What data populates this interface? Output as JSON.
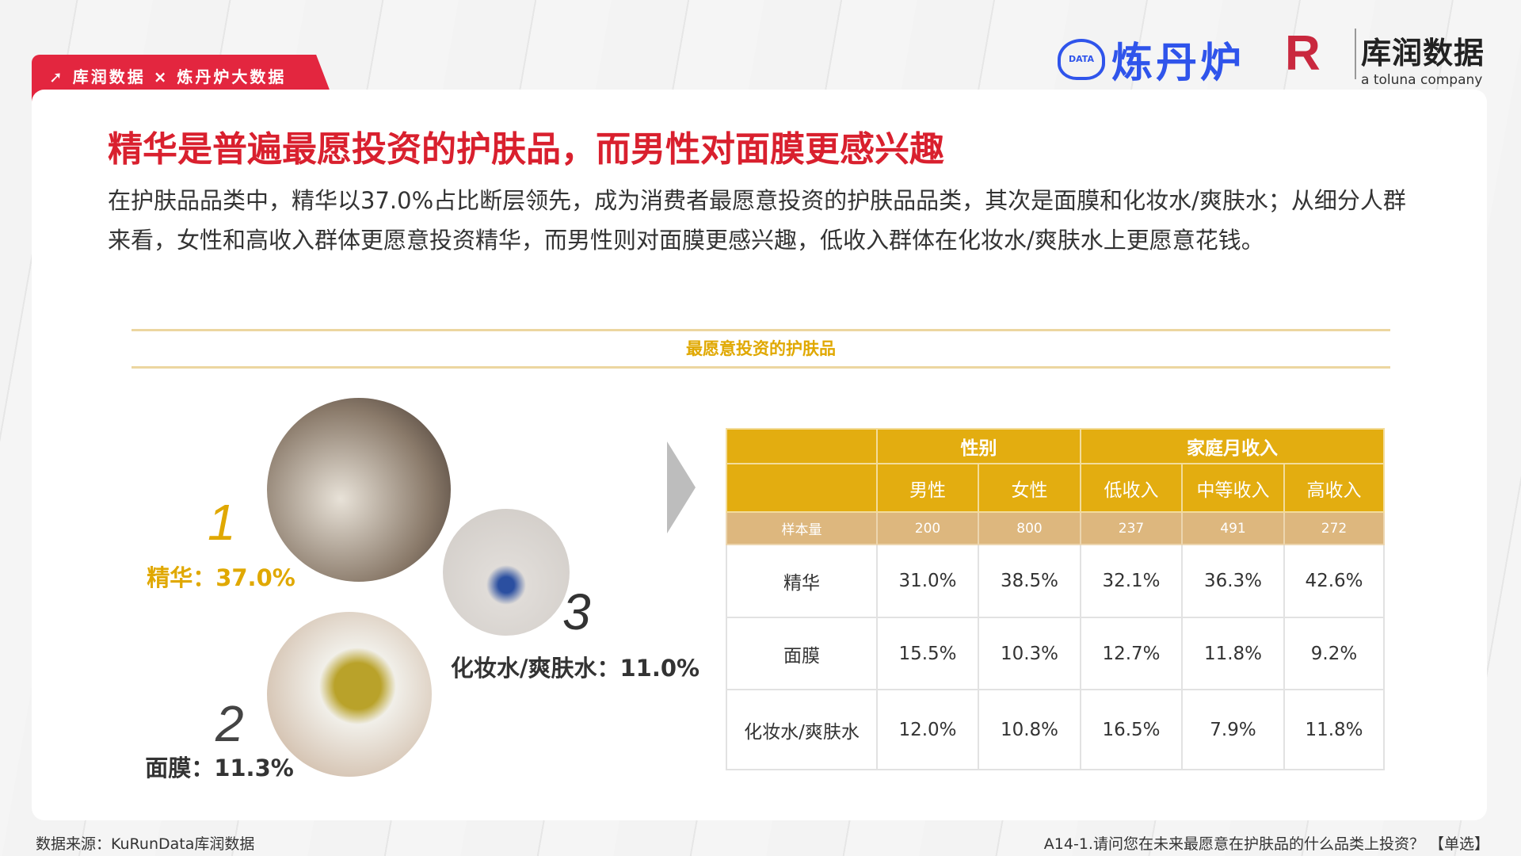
{
  "header": {
    "tab_label": "库润数据 × 炼丹炉大数据",
    "logo_left": "炼丹炉",
    "logo_left_badge": "DATA",
    "logo_right": "库润数据",
    "logo_right_sub": "a toluna company"
  },
  "title": "精华是普遍最愿投资的护肤品，而男性对面膜更感兴趣",
  "paragraph": "在护肤品品类中，精华以37.0%占比断层领先，成为消费者最愿意投资的护肤品品类，其次是面膜和化妆水/爽肤水；从细分人群来看，女性和高收入群体更愿意投资精华，而男性则对面膜更感兴趣，低收入群体在化妆水/爽肤水上更愿意花钱。",
  "section_title": "最愿意投资的护肤品",
  "ranking": [
    {
      "rank": "1",
      "label": "精华：37.0%",
      "value": 37.0
    },
    {
      "rank": "2",
      "label": "面膜：11.3%",
      "value": 11.3
    },
    {
      "rank": "3",
      "label": "化妆水/爽肤水：11.0%",
      "value": 11.0
    }
  ],
  "table": {
    "groups": [
      "性别",
      "家庭月收入"
    ],
    "columns": [
      "男性",
      "女性",
      "低收入",
      "中等收入",
      "高收入"
    ],
    "sample_label": "样本量",
    "samples": [
      "200",
      "800",
      "237",
      "491",
      "272"
    ],
    "rows": [
      {
        "label": "精华",
        "values": [
          "31.0%",
          "38.5%",
          "32.1%",
          "36.3%",
          "42.6%"
        ]
      },
      {
        "label": "面膜",
        "values": [
          "15.5%",
          "10.3%",
          "12.7%",
          "11.8%",
          "9.2%"
        ]
      },
      {
        "label": "化妆水/爽肤水",
        "values": [
          "12.0%",
          "10.8%",
          "16.5%",
          "7.9%",
          "11.8%"
        ]
      }
    ]
  },
  "footer": {
    "source": "数据来源：KuRunData库润数据",
    "question": "A14-1.请问您在未来最愿意在护肤品的什么品类上投资？ 【单选】"
  },
  "colors": {
    "red": "#e3263f",
    "gold": "#e3ad10",
    "sample": "#ddb77e",
    "brand_blue": "#2f54eb"
  }
}
